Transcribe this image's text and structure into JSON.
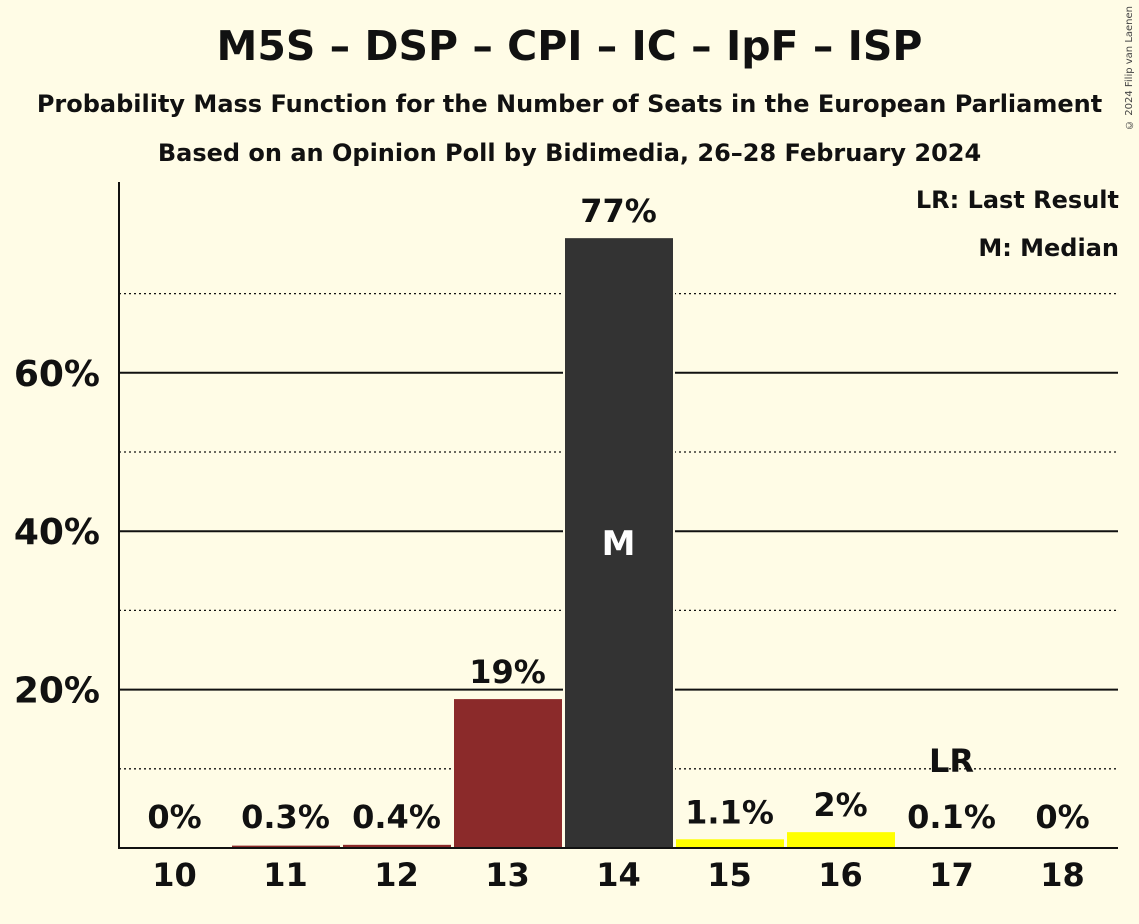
{
  "chart_data": {
    "type": "bar",
    "title": "M5S – DSP – CPI – IC – IpF – ISP",
    "subtitle": "Probability Mass Function for the Number of Seats in the European Parliament",
    "subtitle2": "Based on an Opinion Poll by Bidimedia, 26–28 February 2024",
    "categories": [
      "10",
      "11",
      "12",
      "13",
      "14",
      "15",
      "16",
      "17",
      "18"
    ],
    "values": [
      0,
      0.3,
      0.4,
      18.8,
      77,
      1.1,
      2.0,
      0.1,
      0
    ],
    "data_labels": [
      "0%",
      "0.3%",
      "0.4%",
      "19%",
      "77%",
      "1.1%",
      "2%",
      "0.1%",
      "0%"
    ],
    "bar_colors": [
      "#8b2a2a",
      "#8b2a2a",
      "#8b2a2a",
      "#8b2a2a",
      "#333333",
      "#ffff00",
      "#ffff00",
      "#ffff00",
      "#ffff00"
    ],
    "median_category": "14",
    "median_label": "M",
    "last_result_category": "17",
    "last_result_label": "LR",
    "ylim": [
      0,
      84
    ],
    "yticks": [
      20,
      40,
      60
    ],
    "ytick_labels": [
      "20%",
      "40%",
      "60%"
    ],
    "minor_gridlines": [
      10,
      30,
      50,
      70
    ],
    "legend": [
      "LR: Last Result",
      "M: Median"
    ],
    "legend_position": "top-right",
    "grid": true
  },
  "copyright": "© 2024 Filip van Laenen",
  "colors": {
    "background": "#fffce6"
  }
}
